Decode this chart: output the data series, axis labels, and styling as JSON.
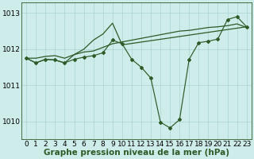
{
  "title": "Graphe pression niveau de la mer (hPa)",
  "background_color": "#ceecea",
  "grid_color": "#aad4d0",
  "line_color": "#2d5a27",
  "xlim": [
    -0.5,
    23.5
  ],
  "ylim": [
    1009.5,
    1013.3
  ],
  "yticks": [
    1010,
    1011,
    1012,
    1013
  ],
  "xticks": [
    0,
    1,
    2,
    3,
    4,
    5,
    6,
    7,
    8,
    9,
    10,
    11,
    12,
    13,
    14,
    15,
    16,
    17,
    18,
    19,
    20,
    21,
    22,
    23
  ],
  "series_main": [
    1011.75,
    1011.62,
    1011.72,
    1011.7,
    1011.62,
    1011.72,
    1011.78,
    1011.82,
    1011.9,
    1012.25,
    1012.15,
    1011.72,
    1011.5,
    1011.2,
    1009.98,
    1009.82,
    1010.05,
    1011.72,
    1012.18,
    1012.22,
    1012.28,
    1012.82,
    1012.9,
    1012.62
  ],
  "series_trend1": [
    1011.75,
    1011.75,
    1011.8,
    1011.82,
    1011.75,
    1011.85,
    1011.92,
    1011.95,
    1012.05,
    1012.15,
    1012.2,
    1012.25,
    1012.3,
    1012.35,
    1012.4,
    1012.45,
    1012.5,
    1012.52,
    1012.56,
    1012.6,
    1012.62,
    1012.65,
    1012.7,
    1012.6
  ],
  "series_spike_x": [
    0,
    1,
    2,
    3,
    4,
    5,
    6,
    7,
    8,
    9,
    10,
    23
  ],
  "series_spike_y": [
    1011.75,
    1011.62,
    1011.72,
    1011.7,
    1011.62,
    1011.85,
    1012.0,
    1012.25,
    1012.42,
    1012.72,
    1012.12,
    1012.62
  ],
  "tick_fontsize": 6.5,
  "xlabel_fontsize": 7.5
}
